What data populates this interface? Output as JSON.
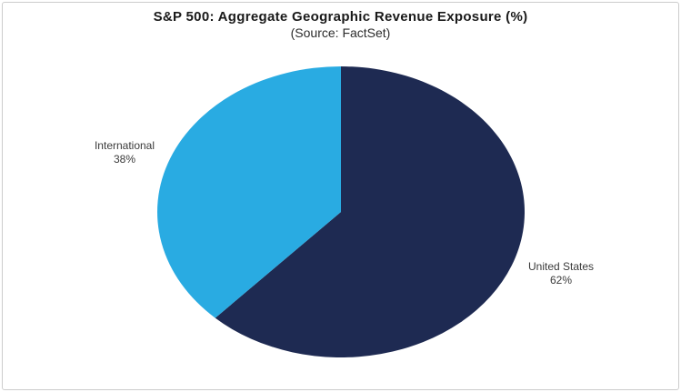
{
  "chart_data": {
    "type": "pie",
    "title": "S&P 500: Aggregate Geographic Revenue Exposure (%)",
    "subtitle": "(Source: FactSet)",
    "start_angle_deg": 0,
    "direction": "clockwise",
    "legend_position": "none",
    "label_style": "outside",
    "slices": [
      {
        "label": "United States",
        "value": 62,
        "display_value": "62%",
        "color": "#1E2A52"
      },
      {
        "label": "International",
        "value": 38,
        "display_value": "38%",
        "color": "#29ABE2"
      }
    ]
  },
  "frame": {
    "border_color": "#cccccc",
    "background_color": "#ffffff"
  }
}
